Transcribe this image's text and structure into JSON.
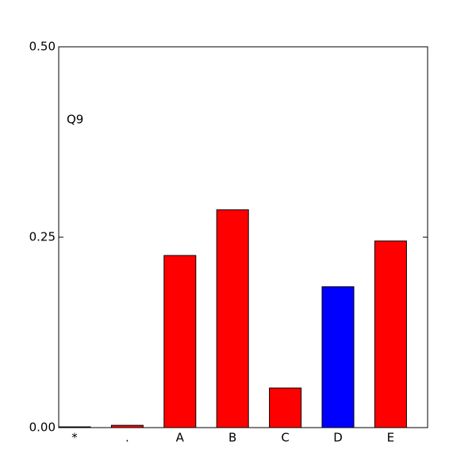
{
  "chart_data": {
    "type": "bar",
    "annotation": "Q9",
    "categories": [
      "*",
      ".",
      "A",
      "B",
      "C",
      "D",
      "E"
    ],
    "values": [
      0.001,
      0.003,
      0.226,
      0.286,
      0.052,
      0.185,
      0.245
    ],
    "colors": [
      "#ff0000",
      "#ff0000",
      "#ff0000",
      "#ff0000",
      "#ff0000",
      "#0000ff",
      "#ff0000"
    ],
    "ylim": [
      0,
      0.5
    ],
    "yticks": [
      {
        "value": 0,
        "label": "0.00"
      },
      0.25,
      {
        "value": 0.5,
        "label": "0.50"
      }
    ]
  }
}
